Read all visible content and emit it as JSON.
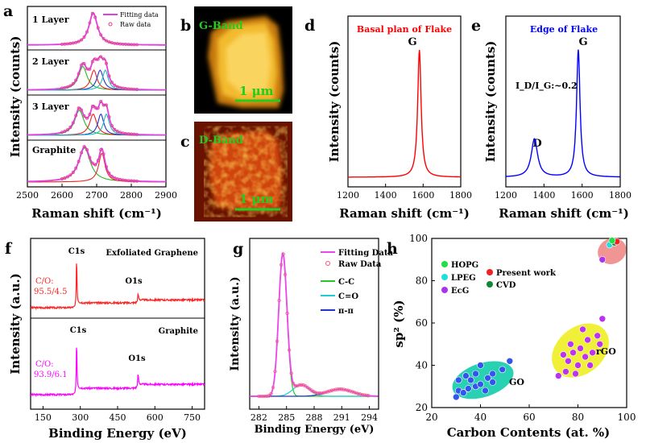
{
  "chart_data": [
    {
      "panel": "a",
      "type": "line",
      "xlabel": "Raman shift (cm⁻¹)",
      "ylabel": "Intensity (counts)",
      "xlim": [
        2500,
        2900
      ],
      "xticks": [
        2500,
        2600,
        2700,
        2800,
        2900
      ],
      "legend": [
        "Fitting data",
        "Raw data"
      ],
      "legend_position": "top-right",
      "colors": {
        "fit": "#e040e0",
        "raw": "#e04080",
        "c1": "#22bb22",
        "c2": "#ee2222",
        "c3": "#2233cc",
        "c4": "#22bbbb"
      },
      "traces": [
        {
          "name": "1 Layer",
          "peaks": [
            [
              2690,
              30
            ]
          ]
        },
        {
          "name": "2 Layer",
          "peaks": [
            [
              2660,
              30
            ],
            [
              2692,
              22
            ],
            [
              2710,
              22
            ],
            [
              2725,
              20
            ]
          ]
        },
        {
          "name": "3 Layer",
          "peaks": [
            [
              2650,
              32
            ],
            [
              2690,
              24
            ],
            [
              2712,
              20
            ],
            [
              2728,
              20
            ]
          ]
        },
        {
          "name": "Graphite",
          "peaks": [
            [
              2665,
              40
            ],
            [
              2715,
              22
            ]
          ]
        }
      ]
    },
    {
      "panel": "b",
      "type": "heatmap",
      "label": "G-Band",
      "scalebar": "1 μm"
    },
    {
      "panel": "c",
      "type": "heatmap",
      "label": "D-Band",
      "scalebar": "1 μm"
    },
    {
      "panel": "d",
      "type": "line",
      "title": "Basal plan of Flake",
      "xlabel": "Raman shift (cm⁻¹)",
      "ylabel": "Intensity (counts)",
      "xlim": [
        1200,
        1800
      ],
      "xticks": [
        1200,
        1400,
        1600,
        1800
      ],
      "color": "#ff0000",
      "peaks": [
        {
          "label": "G",
          "center": 1580,
          "height": 1.0
        }
      ]
    },
    {
      "panel": "e",
      "type": "line",
      "title": "Edge of Flake",
      "xlabel": "Raman shift (cm⁻¹)",
      "ylabel": "Intensity (counts)",
      "xlim": [
        1200,
        1800
      ],
      "xticks": [
        1200,
        1400,
        1600,
        1800
      ],
      "color": "#0000ff",
      "annotation": "I_D/I_G:~0.2",
      "peaks": [
        {
          "label": "D",
          "center": 1350,
          "height": 0.3
        },
        {
          "label": "G",
          "center": 1580,
          "height": 1.0
        }
      ]
    },
    {
      "panel": "f",
      "type": "line",
      "xlabel": "Binding Energy (eV)",
      "ylabel": "Intensity (a.u.)",
      "xlim": [
        100,
        800
      ],
      "xticks": [
        150,
        300,
        450,
        600,
        750
      ],
      "traces": [
        {
          "name": "Exfoliated Graphene",
          "ratio_label": "C/O:",
          "ratio_value": "95.5/4.5",
          "color": "#ff2222",
          "peaks": [
            {
              "label": "C1s",
              "center": 285
            },
            {
              "label": "O1s",
              "center": 532
            }
          ]
        },
        {
          "name": "Graphite",
          "ratio_label": "C/O:",
          "ratio_value": "93.9/6.1",
          "color": "#ff00ff",
          "peaks": [
            {
              "label": "C1s",
              "center": 285
            },
            {
              "label": "O1s",
              "center": 532
            }
          ]
        }
      ]
    },
    {
      "panel": "g",
      "type": "line",
      "xlabel": "Binding Energy (eV)",
      "ylabel": "Intensity (a.u.)",
      "xlim": [
        281,
        295
      ],
      "xticks": [
        282,
        285,
        288,
        291,
        294
      ],
      "legend": [
        "Fitting Data",
        "Raw Data",
        "C-C",
        "C=O",
        "π-π"
      ],
      "legend_position": "top-right",
      "colors": {
        "fit": "#ee44ee",
        "raw": "#ee5577",
        "cc": "#22cc22",
        "co": "#22cccc",
        "pipi": "#2233cc"
      }
    },
    {
      "panel": "h",
      "type": "scatter",
      "xlabel": "Carbon Contents (at. %)",
      "ylabel": "sp² (%)",
      "xlim": [
        20,
        100
      ],
      "ylim": [
        20,
        100
      ],
      "xticks": [
        20,
        40,
        60,
        80,
        100
      ],
      "yticks": [
        20,
        40,
        60,
        80,
        100
      ],
      "legend": [
        {
          "name": "HOPG",
          "color": "#22dd44"
        },
        {
          "name": "LPEG",
          "color": "#22dddd"
        },
        {
          "name": "EcG",
          "color": "#aa33ee"
        },
        {
          "name": "Present work",
          "color": "#ee2222"
        },
        {
          "name": "CVD",
          "color": "#118833"
        }
      ],
      "legend_position": "top-left",
      "groups": [
        {
          "name": "GO",
          "ellipse_color": "#11ccaa",
          "color": "#3355ee",
          "points": [
            [
              30,
              25
            ],
            [
              31,
              28
            ],
            [
              33,
              27
            ],
            [
              35,
              29
            ],
            [
              31,
              33
            ],
            [
              34,
              35
            ],
            [
              36,
              33
            ],
            [
              38,
              30
            ],
            [
              40,
              31
            ],
            [
              42,
              28
            ],
            [
              43,
              34
            ],
            [
              45,
              36
            ],
            [
              49,
              38
            ],
            [
              52,
              42
            ],
            [
              40,
              40
            ],
            [
              38,
              36
            ],
            [
              45,
              32
            ]
          ]
        },
        {
          "name": "rGO",
          "ellipse_color": "#eeee22",
          "color": "#bb33ee",
          "points": [
            [
              72,
              35
            ],
            [
              75,
              37
            ],
            [
              76,
              42
            ],
            [
              78,
              46
            ],
            [
              79,
              36
            ],
            [
              80,
              40
            ],
            [
              81,
              48
            ],
            [
              83,
              44
            ],
            [
              84,
              52
            ],
            [
              85,
              40
            ],
            [
              86,
              46
            ],
            [
              88,
              54
            ],
            [
              89,
              50
            ],
            [
              90,
              62
            ],
            [
              82,
              57
            ],
            [
              77,
              50
            ],
            [
              74,
              45
            ]
          ]
        },
        {
          "name": "",
          "ellipse_color": "#ee8888",
          "points": [
            {
              "x": 90,
              "y": 90,
              "series": "EcG"
            },
            {
              "x": 93,
              "y": 97,
              "series": "LPEG"
            },
            {
              "x": 95,
              "y": 98,
              "series": "CVD"
            },
            {
              "x": 96,
              "y": 98.5,
              "series": "Present work"
            },
            {
              "x": 94,
              "y": 99,
              "series": "HOPG"
            }
          ]
        }
      ]
    }
  ],
  "panel_labels": [
    "a",
    "b",
    "c",
    "d",
    "e",
    "f",
    "g",
    "h"
  ]
}
